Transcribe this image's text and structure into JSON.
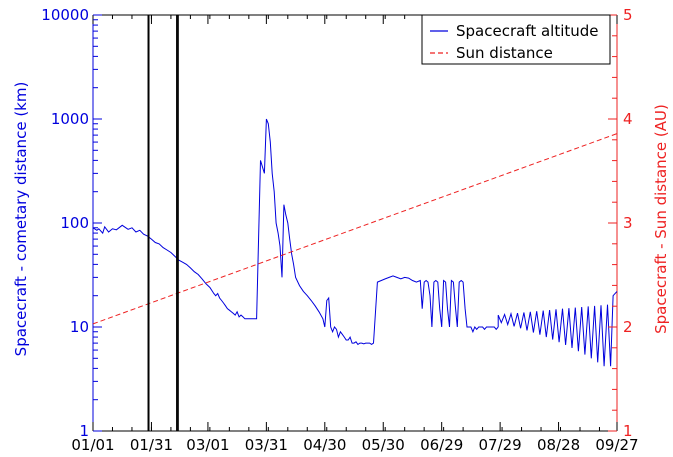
{
  "chart_data": {
    "type": "line",
    "x_tick_labels": [
      "01/01",
      "01/31",
      "03/01",
      "03/31",
      "04/30",
      "05/30",
      "06/29",
      "07/29",
      "08/28",
      "09/27"
    ],
    "x_tick_days": [
      0,
      30,
      59,
      89,
      119,
      149,
      179,
      209,
      239,
      269
    ],
    "x_range": [
      0,
      269
    ],
    "ylabel_left": "Spacecraft - cometary distance (km)",
    "ylabel_right": "Spacecraft - Sun distance (AU)",
    "y_left": {
      "scale": "log",
      "range": [
        1,
        10000
      ],
      "tick_labels": [
        "1",
        "10",
        "100",
        "1000",
        "10000"
      ],
      "tick_values": [
        1,
        10,
        100,
        1000,
        10000
      ]
    },
    "y_right": {
      "scale": "linear",
      "range": [
        1,
        5
      ],
      "tick_labels": [
        "1",
        "2",
        "3",
        "4",
        "5"
      ],
      "tick_values": [
        1,
        2,
        3,
        4,
        5
      ]
    },
    "vertical_lines_days": [
      28.5,
      43,
      43.7
    ],
    "series": [
      {
        "name": "Spacecraft altitude",
        "axis": "left",
        "color": "#0000dd",
        "style": "solid",
        "x": [
          0,
          2,
          3,
          5,
          6,
          8,
          10,
          12,
          15,
          18,
          20,
          22,
          24,
          26,
          28,
          30,
          32,
          34,
          36,
          38,
          40,
          42,
          44,
          46,
          48,
          50,
          52,
          54,
          56,
          58,
          60,
          62,
          63,
          64,
          65,
          66,
          67,
          68,
          69,
          70,
          71,
          72,
          73,
          74,
          75,
          76,
          77,
          78,
          80,
          82,
          84,
          86,
          88,
          89,
          90,
          91,
          92,
          93,
          94,
          95,
          96,
          97,
          98,
          99,
          100,
          101,
          102,
          103,
          104,
          106,
          108,
          110,
          112,
          114,
          116,
          118,
          119,
          120,
          121,
          122,
          123,
          124,
          125,
          126,
          127,
          128,
          129,
          130,
          131,
          132,
          133,
          134,
          135,
          136,
          137,
          138,
          139,
          140,
          141,
          142,
          143,
          144,
          146,
          148,
          150,
          152,
          154,
          156,
          158,
          160,
          162,
          164,
          166,
          168,
          169,
          170,
          171,
          172,
          173,
          174,
          175,
          176,
          177,
          178,
          179,
          180,
          181,
          182,
          183,
          184,
          185,
          186,
          187,
          188,
          189,
          190,
          191,
          192,
          193,
          194,
          195,
          196,
          197,
          198,
          199,
          200,
          201,
          202,
          203,
          204,
          205,
          206,
          207,
          208
        ],
        "y": [
          90,
          85,
          88,
          80,
          92,
          82,
          88,
          86,
          95,
          87,
          90,
          82,
          85,
          78,
          75,
          70,
          65,
          63,
          58,
          55,
          52,
          48,
          44,
          42,
          40,
          37,
          34,
          32,
          29,
          26,
          24,
          21,
          20,
          21,
          19,
          18,
          17,
          16,
          15,
          14.5,
          14,
          13.5,
          13,
          14,
          12.5,
          13,
          12.5,
          12,
          12,
          12,
          12,
          400,
          300,
          1000,
          900,
          600,
          300,
          200,
          100,
          80,
          60,
          30,
          150,
          120,
          100,
          70,
          50,
          40,
          30,
          25,
          22,
          20,
          18,
          16,
          14,
          12,
          10,
          18,
          19,
          10,
          9,
          10,
          9.5,
          8,
          9,
          8.5,
          8,
          7.5,
          7.5,
          8,
          7,
          7,
          7.2,
          6.8,
          7,
          7,
          6.9,
          7,
          7,
          7,
          6.8,
          7,
          27,
          28,
          29,
          30,
          31,
          30,
          29,
          30,
          29.5,
          28,
          27,
          28,
          15,
          27,
          28,
          27,
          20,
          10,
          27,
          28,
          27,
          15,
          10,
          28,
          27,
          15,
          10,
          28,
          27,
          16,
          10,
          27,
          28,
          27,
          15,
          10,
          10,
          10,
          9,
          10,
          9.5,
          10,
          10,
          10,
          9.5,
          10,
          10,
          10,
          10,
          10,
          9.5,
          10
        ]
      },
      {
        "name": "Sun distance",
        "axis": "right",
        "color": "#ee2222",
        "style": "dashed",
        "x": [
          0,
          269
        ],
        "y": [
          2.03,
          3.86
        ]
      }
    ],
    "legend_position": "top-right",
    "grid": false
  },
  "colors": {
    "left_axis": "#0000dd",
    "right_axis": "#ee2222",
    "frame": "#000000"
  }
}
